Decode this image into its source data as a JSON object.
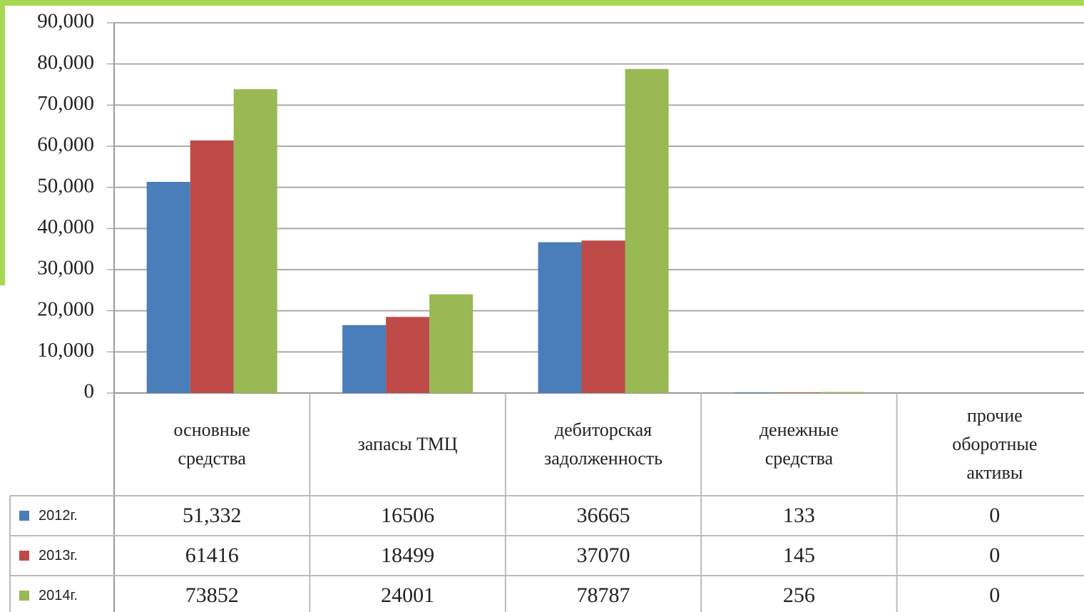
{
  "chart_data": {
    "type": "bar",
    "categories": [
      "основные средства",
      "запасы ТМЦ",
      "дебиторская задолженность",
      "денежные средства",
      "прочие оборотные активы"
    ],
    "series": [
      {
        "name": "2012г.",
        "color": "#4a7ebb",
        "values": [
          51332,
          16506,
          36665,
          133,
          0
        ],
        "value_labels": [
          "51,332",
          "16506",
          "36665",
          "133",
          "0"
        ]
      },
      {
        "name": "2013г.",
        "color": "#be4b48",
        "values": [
          61416,
          18499,
          37070,
          145,
          0
        ]
      },
      {
        "name": "2014г.",
        "color": "#98b954",
        "values": [
          73852,
          24001,
          78787,
          256,
          0
        ]
      }
    ],
    "ylim": [
      0,
      90000
    ],
    "yticks": [
      0,
      {
        "value": 10000,
        "label": "10,000"
      },
      {
        "value": 20000,
        "label": "20,000"
      },
      {
        "value": 30000,
        "label": "30,000"
      },
      {
        "value": 40000,
        "label": "40,000"
      },
      {
        "value": 50000,
        "label": "50,000"
      },
      {
        "value": 60000,
        "label": "60,000"
      },
      {
        "value": 70000,
        "label": "70,000"
      },
      {
        "value": 80000,
        "label": "80,000"
      },
      {
        "value": 90000,
        "label": "90,000"
      }
    ],
    "grid": true
  }
}
